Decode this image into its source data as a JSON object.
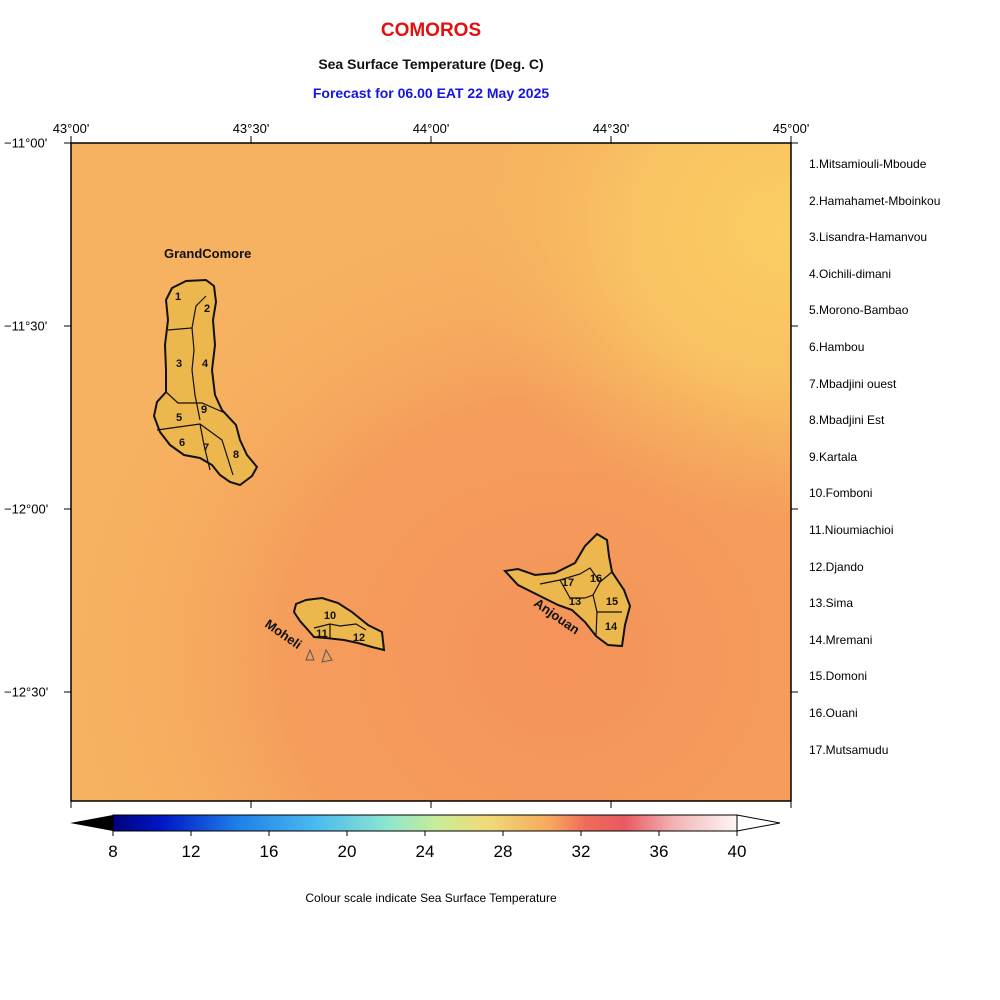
{
  "header": {
    "title": "COMOROS",
    "subtitle": "Sea Surface Temperature (Deg. C)",
    "forecast": "Forecast for  06.00 EAT 22 May 2025"
  },
  "map": {
    "lon_ticks": [
      "43°00'",
      "43°30'",
      "44°00'",
      "44°30'",
      "45°00'"
    ],
    "lat_ticks": [
      "−11°00'",
      "−11°30'",
      "−12°00'",
      "−12°30'"
    ],
    "islands": [
      {
        "name": "GrandComore",
        "districts": [
          "1",
          "2",
          "3",
          "4",
          "5",
          "6",
          "7",
          "8",
          "9"
        ]
      },
      {
        "name": "Moheli",
        "districts": [
          "10",
          "11",
          "12"
        ]
      },
      {
        "name": "Anjouan",
        "districts": [
          "13",
          "14",
          "15",
          "16",
          "17"
        ]
      }
    ],
    "colors": {
      "warm_sea": "#f6b260",
      "hot_sea": "#f4975c",
      "cool_sea": "#fbca62",
      "land": "#eeb84e",
      "coast": "#111111"
    }
  },
  "legend": {
    "districts": [
      "1.Mitsamiouli-Mboude",
      "2.Hamahamet-Mboinkou",
      "3.Lisandra-Hamanvou",
      "4.Oichili-dimani",
      "5.Morono-Bambao",
      "6.Hambou",
      "7.Mbadjini ouest",
      "8.Mbadjini Est",
      "9.Kartala",
      "10.Fomboni",
      "11.Nioumiachioi",
      "12.Djando",
      "13.Sima",
      "14.Mremani",
      "15.Domoni",
      "16.Ouani",
      "17.Mutsamudu"
    ]
  },
  "colorbar": {
    "ticks": [
      "8",
      "12",
      "16",
      "20",
      "24",
      "28",
      "32",
      "36",
      "40"
    ],
    "min": 8,
    "max": 40,
    "caption": "Colour scale indicate Sea Surface Temperature"
  }
}
